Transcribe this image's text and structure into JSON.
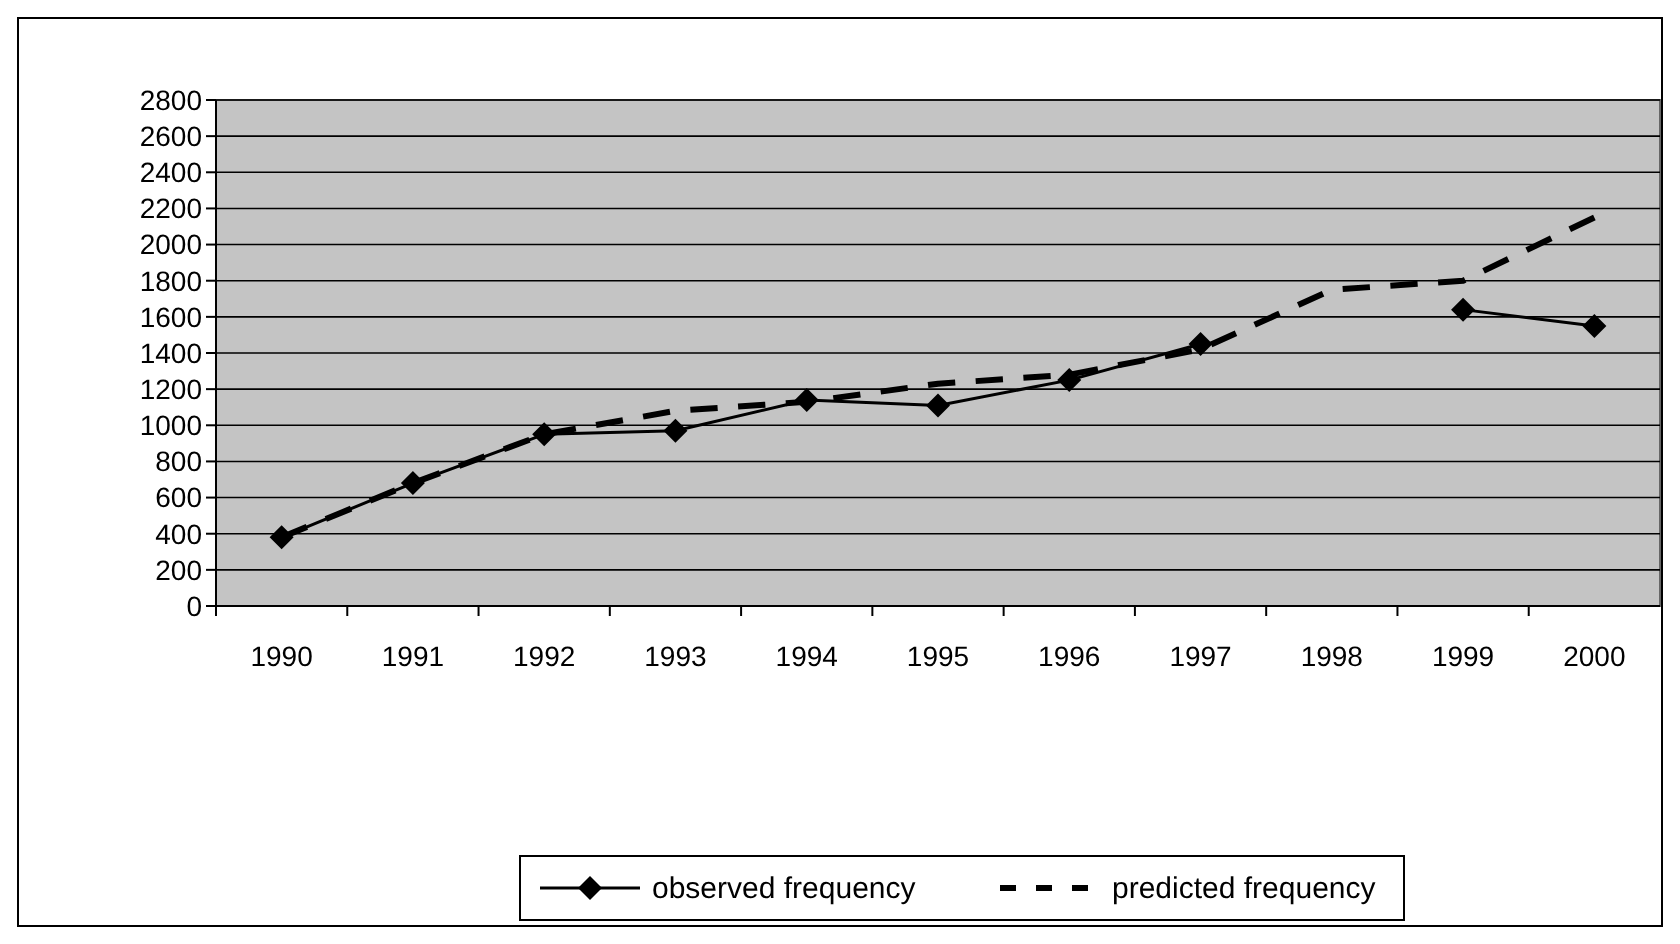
{
  "chart_data": {
    "type": "line",
    "categories": [
      "1990",
      "1991",
      "1992",
      "1993",
      "1994",
      "1995",
      "1996",
      "1997",
      "1998",
      "1999",
      "2000"
    ],
    "series": [
      {
        "name": "observed frequency",
        "color": "#000000",
        "marker": "diamond",
        "line_style": "solid",
        "values": [
          380,
          680,
          950,
          970,
          1140,
          1110,
          1250,
          1450,
          null,
          1640,
          1550
        ]
      },
      {
        "name": "predicted frequency",
        "color": "#000000",
        "marker": "none",
        "line_style": "dashed",
        "values": [
          380,
          680,
          950,
          1080,
          1130,
          1230,
          1280,
          1420,
          1750,
          1800,
          2150
        ]
      }
    ],
    "ylim": [
      0,
      2800
    ],
    "yticks": [
      0,
      200,
      400,
      600,
      800,
      1000,
      1200,
      1400,
      1600,
      1800,
      2000,
      2200,
      2400,
      2600,
      2800
    ],
    "grid": "y",
    "legend": "bottom"
  }
}
